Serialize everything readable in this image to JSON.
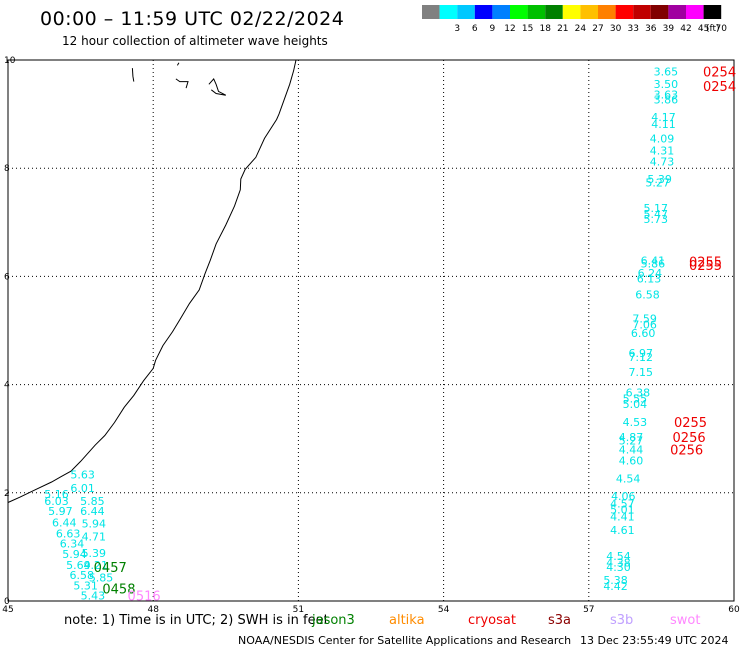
{
  "header": {
    "title": "00:00 – 11:59 UTC 02/22/2024",
    "subtitle": "12 hour collection of altimeter wave heights"
  },
  "legend": {
    "unit": "(ft)",
    "entries": [
      {
        "label": "",
        "color": "#808080"
      },
      {
        "label": "3",
        "color": "#00ffff"
      },
      {
        "label": "6",
        "color": "#00c8ff"
      },
      {
        "label": "9",
        "color": "#0000ff"
      },
      {
        "label": "12",
        "color": "#0080ff"
      },
      {
        "label": "15",
        "color": "#00ff00"
      },
      {
        "label": "18",
        "color": "#00c000"
      },
      {
        "label": "21",
        "color": "#008000"
      },
      {
        "label": "24",
        "color": "#ffff00"
      },
      {
        "label": "27",
        "color": "#ffc000"
      },
      {
        "label": "30",
        "color": "#ff8000"
      },
      {
        "label": "33",
        "color": "#ff0000"
      },
      {
        "label": "36",
        "color": "#c00000"
      },
      {
        "label": "39",
        "color": "#800000"
      },
      {
        "label": "42",
        "color": "#a000a0"
      },
      {
        "label": "45",
        "color": "#ff00ff"
      },
      {
        "label": "70",
        "color": "#000000"
      }
    ]
  },
  "axes": {
    "lon_ticks": [
      "45",
      "48",
      "51",
      "54",
      "57",
      "60"
    ],
    "lat_ticks": [
      "0",
      "2",
      "4",
      "6",
      "8",
      "10"
    ]
  },
  "track_colors": {
    "jason": "#00e5e5",
    "jason_time": "#008000",
    "cryosat_time": "#ee0000",
    "swot_time": "#ff88ff"
  },
  "west_track": {
    "swh": [
      {
        "v": "5.63",
        "lon": 46.29,
        "lat": 2.34
      },
      {
        "v": "6.01",
        "lon": 46.29,
        "lat": 2.09
      },
      {
        "v": "5.16",
        "lon": 45.75,
        "lat": 1.98
      },
      {
        "v": "6.03",
        "lon": 45.75,
        "lat": 1.85
      },
      {
        "v": "5.85",
        "lon": 46.49,
        "lat": 1.85
      },
      {
        "v": "5.97",
        "lon": 45.83,
        "lat": 1.66
      },
      {
        "v": "6.44",
        "lon": 46.49,
        "lat": 1.66
      },
      {
        "v": "6.44",
        "lon": 45.91,
        "lat": 1.45
      },
      {
        "v": "5.94",
        "lon": 46.52,
        "lat": 1.43
      },
      {
        "v": "6.63",
        "lon": 45.99,
        "lat": 1.25
      },
      {
        "v": "4.71",
        "lon": 46.52,
        "lat": 1.19
      },
      {
        "v": "6.34",
        "lon": 46.07,
        "lat": 1.06
      },
      {
        "v": "5.94",
        "lon": 46.12,
        "lat": 0.87
      },
      {
        "v": "5.39",
        "lon": 46.52,
        "lat": 0.89
      },
      {
        "v": "5.69",
        "lon": 46.2,
        "lat": 0.67
      },
      {
        "v": "4.21",
        "lon": 46.56,
        "lat": 0.67
      },
      {
        "v": "6.58",
        "lon": 46.27,
        "lat": 0.48
      },
      {
        "v": "5.85",
        "lon": 46.67,
        "lat": 0.43
      },
      {
        "v": "5.31",
        "lon": 46.35,
        "lat": 0.29
      },
      {
        "v": "5.43",
        "lon": 46.5,
        "lat": 0.1
      }
    ],
    "times": [
      {
        "v": "0457",
        "lon": 46.77,
        "lat": 0.63,
        "kind": "jason_time"
      },
      {
        "v": "0458",
        "lon": 46.95,
        "lat": 0.23,
        "kind": "jason_time"
      },
      {
        "v": "0516",
        "lon": 47.47,
        "lat": 0.1,
        "kind": "swot_time"
      }
    ]
  },
  "east_track": {
    "swh": [
      {
        "v": "3.65",
        "lon": 58.34,
        "lat": 9.79
      },
      {
        "v": "3.50",
        "lon": 58.34,
        "lat": 9.56
      },
      {
        "v": "3.63",
        "lon": 58.34,
        "lat": 9.36
      },
      {
        "v": "3.86",
        "lon": 58.34,
        "lat": 9.27
      },
      {
        "v": "4.17",
        "lon": 58.29,
        "lat": 8.95
      },
      {
        "v": "4.11",
        "lon": 58.29,
        "lat": 8.82
      },
      {
        "v": "4.09",
        "lon": 58.26,
        "lat": 8.55
      },
      {
        "v": "4.31",
        "lon": 58.26,
        "lat": 8.33
      },
      {
        "v": "4.73",
        "lon": 58.26,
        "lat": 8.12
      },
      {
        "v": "5.39",
        "lon": 58.21,
        "lat": 7.8
      },
      {
        "v": "5.27",
        "lon": 58.17,
        "lat": 7.74
      },
      {
        "v": "5.17",
        "lon": 58.13,
        "lat": 7.26
      },
      {
        "v": "5.47",
        "lon": 58.13,
        "lat": 7.15
      },
      {
        "v": "5.73",
        "lon": 58.13,
        "lat": 7.06
      },
      {
        "v": "6.41",
        "lon": 58.07,
        "lat": 6.29
      },
      {
        "v": "5.86",
        "lon": 58.07,
        "lat": 6.24
      },
      {
        "v": "6.24",
        "lon": 58.01,
        "lat": 6.06
      },
      {
        "v": "6.13",
        "lon": 57.99,
        "lat": 5.96
      },
      {
        "v": "6.58",
        "lon": 57.96,
        "lat": 5.67
      },
      {
        "v": "7.59",
        "lon": 57.9,
        "lat": 5.22
      },
      {
        "v": "7.06",
        "lon": 57.9,
        "lat": 5.11
      },
      {
        "v": "6.60",
        "lon": 57.87,
        "lat": 4.95
      },
      {
        "v": "6.97",
        "lon": 57.82,
        "lat": 4.58
      },
      {
        "v": "7.12",
        "lon": 57.82,
        "lat": 4.51
      },
      {
        "v": "7.15",
        "lon": 57.82,
        "lat": 4.23
      },
      {
        "v": "6.38",
        "lon": 57.76,
        "lat": 3.85
      },
      {
        "v": "5.55",
        "lon": 57.7,
        "lat": 3.74
      },
      {
        "v": "5.04",
        "lon": 57.7,
        "lat": 3.64
      },
      {
        "v": "4.53",
        "lon": 57.7,
        "lat": 3.31
      },
      {
        "v": "4.87",
        "lon": 57.62,
        "lat": 3.03
      },
      {
        "v": "5.27",
        "lon": 57.62,
        "lat": 2.97
      },
      {
        "v": "4.44",
        "lon": 57.62,
        "lat": 2.8
      },
      {
        "v": "4.60",
        "lon": 57.62,
        "lat": 2.6
      },
      {
        "v": "4.54",
        "lon": 57.56,
        "lat": 2.26
      },
      {
        "v": "4.06",
        "lon": 57.46,
        "lat": 1.94
      },
      {
        "v": "4.57",
        "lon": 57.44,
        "lat": 1.8
      },
      {
        "v": "5.01",
        "lon": 57.44,
        "lat": 1.69
      },
      {
        "v": "4.41",
        "lon": 57.44,
        "lat": 1.56
      },
      {
        "v": "4.61",
        "lon": 57.44,
        "lat": 1.31
      },
      {
        "v": "4.54",
        "lon": 57.36,
        "lat": 0.83
      },
      {
        "v": "4.38",
        "lon": 57.36,
        "lat": 0.71
      },
      {
        "v": "4.30",
        "lon": 57.36,
        "lat": 0.63
      },
      {
        "v": "5.38",
        "lon": 57.3,
        "lat": 0.39
      },
      {
        "v": "4.42",
        "lon": 57.3,
        "lat": 0.28
      }
    ],
    "times": [
      {
        "v": "0254",
        "lon": 59.36,
        "lat": 9.79,
        "kind": "cryosat_time"
      },
      {
        "v": "0254",
        "lon": 59.36,
        "lat": 9.52,
        "kind": "cryosat_time"
      },
      {
        "v": "0255",
        "lon": 59.07,
        "lat": 6.28,
        "kind": "cryosat_time"
      },
      {
        "v": "0255",
        "lon": 59.07,
        "lat": 6.21,
        "kind": "cryosat_time"
      },
      {
        "v": "0255",
        "lon": 58.76,
        "lat": 3.31,
        "kind": "cryosat_time"
      },
      {
        "v": "0256",
        "lon": 58.73,
        "lat": 3.03,
        "kind": "cryosat_time"
      },
      {
        "v": "0256",
        "lon": 58.68,
        "lat": 2.8,
        "kind": "cryosat_time"
      }
    ]
  },
  "coastline": [
    [
      45.0,
      1.82
    ],
    [
      45.25,
      1.92
    ],
    [
      45.55,
      2.05
    ],
    [
      45.9,
      2.2
    ],
    [
      46.1,
      2.3
    ],
    [
      46.3,
      2.4
    ],
    [
      46.5,
      2.58
    ],
    [
      46.8,
      2.88
    ],
    [
      47.0,
      3.06
    ],
    [
      47.2,
      3.3
    ],
    [
      47.4,
      3.58
    ],
    [
      47.6,
      3.8
    ],
    [
      47.8,
      4.07
    ],
    [
      48.0,
      4.3
    ],
    [
      48.05,
      4.45
    ],
    [
      48.2,
      4.72
    ],
    [
      48.4,
      4.98
    ],
    [
      48.55,
      5.2
    ],
    [
      48.75,
      5.5
    ],
    [
      48.95,
      5.75
    ],
    [
      49.07,
      6.05
    ],
    [
      49.18,
      6.3
    ],
    [
      49.3,
      6.6
    ],
    [
      49.5,
      6.95
    ],
    [
      49.68,
      7.3
    ],
    [
      49.8,
      7.6
    ],
    [
      49.81,
      7.8
    ],
    [
      49.9,
      7.98
    ],
    [
      50.12,
      8.2
    ],
    [
      50.3,
      8.55
    ],
    [
      50.55,
      8.9
    ],
    [
      50.6,
      9.0
    ],
    [
      50.72,
      9.3
    ],
    [
      50.82,
      9.55
    ],
    [
      50.9,
      9.8
    ],
    [
      50.95,
      10.0
    ]
  ],
  "islands": [
    [
      [
        47.57,
        9.85
      ],
      [
        47.58,
        9.7
      ],
      [
        47.6,
        9.6
      ]
    ],
    [
      [
        48.47,
        9.65
      ],
      [
        48.55,
        9.6
      ],
      [
        48.72,
        9.6
      ],
      [
        48.68,
        9.48
      ]
    ],
    [
      [
        48.5,
        9.9
      ],
      [
        48.53,
        9.95
      ]
    ],
    [
      [
        49.15,
        9.55
      ],
      [
        49.25,
        9.65
      ],
      [
        49.3,
        9.55
      ],
      [
        49.35,
        9.42
      ],
      [
        49.5,
        9.35
      ],
      [
        49.3,
        9.38
      ],
      [
        49.2,
        9.45
      ]
    ]
  ],
  "footer": {
    "note": "note:  1) Time is in UTC;  2) SWH is in feet",
    "satellites": [
      {
        "name": "jason3",
        "color": "#008000"
      },
      {
        "name": "altika",
        "color": "#ff8c00"
      },
      {
        "name": "cryosat",
        "color": "#ee0000"
      },
      {
        "name": "s3a",
        "color": "#8b0000"
      },
      {
        "name": "s3b",
        "color": "#c0a0ff"
      },
      {
        "name": "swot",
        "color": "#ff88ff"
      }
    ],
    "credit": "NOAA/NESDIS Center for Satellite Applications and Research",
    "timestamp": "13 Dec 23:55:49 UTC 2024"
  }
}
